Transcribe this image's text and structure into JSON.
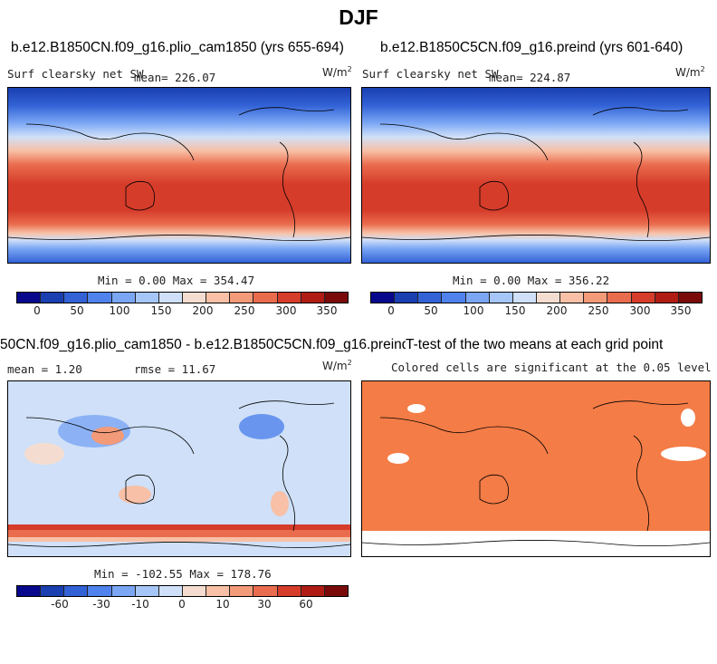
{
  "main_title": "DJF",
  "colors": {
    "land_outline": "#000000",
    "significant_cell": "#f47c46",
    "scale_sw": [
      "#08088c",
      "#1a3fb0",
      "#3262d6",
      "#4f82ec",
      "#7aa6f4",
      "#a6c6f8",
      "#cfe0f8",
      "#f4ddd0",
      "#f8c0a6",
      "#f39a78",
      "#ea6c4e",
      "#d63c2a",
      "#b01c14",
      "#7a0a0a"
    ],
    "scale_diff": [
      "#08088c",
      "#1a3fb0",
      "#3262d6",
      "#4f82ec",
      "#7aa6f4",
      "#a6c6f8",
      "#cfe0f8",
      "#f4ddd0",
      "#f8c0a6",
      "#f39a78",
      "#ea6c4e",
      "#d63c2a",
      "#b01c14",
      "#7a0a0a"
    ]
  },
  "panels": {
    "top_left": {
      "case_title": "b.e12.B1850CN.f09_g16.plio_cam1850 (yrs 655-694)",
      "variable": "Surf clearsky net SW",
      "mean_label": "mean= 226.07",
      "units": "W/m",
      "units_exp": "2",
      "minmax": "Min =    0.00 Max = 354.47",
      "ticks": [
        "0",
        "50",
        "100",
        "150",
        "200",
        "250",
        "300",
        "350"
      ]
    },
    "top_right": {
      "case_title": "b.e12.B1850C5CN.f09_g16.preind (yrs 601-640)",
      "variable": "Surf clearsky net SW",
      "mean_label": "mean= 224.87",
      "units": "W/m",
      "units_exp": "2",
      "minmax": "Min =    0.00 Max = 356.22",
      "ticks": [
        "0",
        "50",
        "100",
        "150",
        "200",
        "250",
        "300",
        "350"
      ]
    },
    "bottom_left": {
      "diff_title": "50CN.f09_g16.plio_cam1850 - b.e12.B1850C5CN.f09_g16.preind",
      "mean_label": "mean =    1.20",
      "rmse_label": "rmse =   11.67",
      "units": "W/m",
      "units_exp": "2",
      "minmax": "Min = -102.55 Max = 178.76",
      "ticks": [
        "-60",
        "-30",
        "-10",
        "0",
        "10",
        "30",
        "60"
      ]
    },
    "bottom_right": {
      "ttest_title": "T-test of the two means at each grid point",
      "significance_note": "Colored cells are significant at the 0.05 level"
    }
  },
  "chart_data": [
    {
      "type": "heatmap",
      "title": "b.e12.B1850CN.f09_g16.plio_cam1850 (yrs 655-694)",
      "variable": "Surf clearsky net SW",
      "units": "W/m2",
      "mean": 226.07,
      "min": 0.0,
      "max": 354.47,
      "colorbar_ticks": [
        0,
        50,
        100,
        150,
        200,
        250,
        300,
        350
      ],
      "pattern": "low values at northern high latitudes, maximum across southern hemisphere subtropics/midlatitudes, low over Antarctica"
    },
    {
      "type": "heatmap",
      "title": "b.e12.B1850C5CN.f09_g16.preind (yrs 601-640)",
      "variable": "Surf clearsky net SW",
      "units": "W/m2",
      "mean": 224.87,
      "min": 0.0,
      "max": 356.22,
      "colorbar_ticks": [
        0,
        50,
        100,
        150,
        200,
        250,
        300,
        350
      ]
    },
    {
      "type": "heatmap",
      "title": "50CN.f09_g16.plio_cam1850 - b.e12.B1850C5CN.f09_g16.preind",
      "units": "W/m2",
      "mean": 1.2,
      "rmse": 11.67,
      "min": -102.55,
      "max": 178.76,
      "colorbar_ticks": [
        -60,
        -30,
        -10,
        0,
        10,
        30,
        60
      ]
    },
    {
      "type": "heatmap",
      "title": "T-test of the two means at each grid point",
      "note": "Colored cells are significant at the 0.05 level",
      "significance_level": 0.05
    }
  ]
}
